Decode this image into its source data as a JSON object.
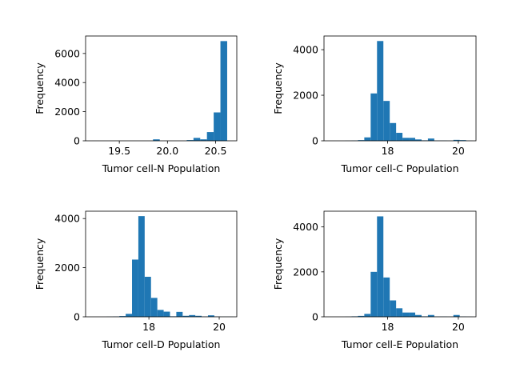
{
  "chart_data": [
    {
      "type": "bar",
      "title": "",
      "xlabel": "Tumor cell-N Population",
      "ylabel": "Frequency",
      "color": "#1f77b4",
      "xlim": [
        19.15,
        20.72
      ],
      "ylim": [
        0,
        7200
      ],
      "xticks": [
        19.5,
        20.0,
        20.5
      ],
      "xtick_labels": [
        "19.5",
        "20.0",
        "20.5"
      ],
      "yticks": [
        0,
        2000,
        4000,
        6000
      ],
      "ytick_labels": [
        "0",
        "2000",
        "4000",
        "6000"
      ],
      "bins": [
        {
          "x0": 19.22,
          "x1": 19.29,
          "value": 2
        },
        {
          "x0": 19.29,
          "x1": 19.36,
          "value": 0
        },
        {
          "x0": 19.36,
          "x1": 19.43,
          "value": 0
        },
        {
          "x0": 19.43,
          "x1": 19.5,
          "value": 0
        },
        {
          "x0": 19.5,
          "x1": 19.57,
          "value": 0
        },
        {
          "x0": 19.57,
          "x1": 19.64,
          "value": 0
        },
        {
          "x0": 19.64,
          "x1": 19.71,
          "value": 0
        },
        {
          "x0": 19.71,
          "x1": 19.78,
          "value": 0
        },
        {
          "x0": 19.78,
          "x1": 19.85,
          "value": 0
        },
        {
          "x0": 19.85,
          "x1": 19.92,
          "value": 100
        },
        {
          "x0": 19.92,
          "x1": 19.99,
          "value": 0
        },
        {
          "x0": 19.99,
          "x1": 20.06,
          "value": 0
        },
        {
          "x0": 20.06,
          "x1": 20.13,
          "value": 0
        },
        {
          "x0": 20.13,
          "x1": 20.2,
          "value": 0
        },
        {
          "x0": 20.2,
          "x1": 20.27,
          "value": 50
        },
        {
          "x0": 20.27,
          "x1": 20.34,
          "value": 200
        },
        {
          "x0": 20.34,
          "x1": 20.41,
          "value": 100
        },
        {
          "x0": 20.41,
          "x1": 20.48,
          "value": 600
        },
        {
          "x0": 20.48,
          "x1": 20.55,
          "value": 1950
        },
        {
          "x0": 20.55,
          "x1": 20.62,
          "value": 6850
        }
      ]
    },
    {
      "type": "bar",
      "title": "",
      "xlabel": "Tumor cell-C Population",
      "ylabel": "Frequency",
      "color": "#1f77b4",
      "xlim": [
        16.2,
        20.5
      ],
      "ylim": [
        0,
        4600
      ],
      "xticks": [
        18,
        20
      ],
      "xtick_labels": [
        "18",
        "20"
      ],
      "yticks": [
        0,
        2000,
        4000
      ],
      "ytick_labels": [
        "0",
        "2000",
        "4000"
      ],
      "bins": [
        {
          "x0": 16.8,
          "x1": 16.98,
          "value": 5
        },
        {
          "x0": 16.98,
          "x1": 17.16,
          "value": 10
        },
        {
          "x0": 17.16,
          "x1": 17.34,
          "value": 30
        },
        {
          "x0": 17.34,
          "x1": 17.52,
          "value": 150
        },
        {
          "x0": 17.52,
          "x1": 17.7,
          "value": 2080
        },
        {
          "x0": 17.7,
          "x1": 17.88,
          "value": 4380
        },
        {
          "x0": 17.88,
          "x1": 18.06,
          "value": 1750
        },
        {
          "x0": 18.06,
          "x1": 18.24,
          "value": 780
        },
        {
          "x0": 18.24,
          "x1": 18.42,
          "value": 350
        },
        {
          "x0": 18.42,
          "x1": 18.6,
          "value": 130
        },
        {
          "x0": 18.6,
          "x1": 18.78,
          "value": 130
        },
        {
          "x0": 18.78,
          "x1": 18.96,
          "value": 60
        },
        {
          "x0": 18.96,
          "x1": 19.14,
          "value": 20
        },
        {
          "x0": 19.14,
          "x1": 19.32,
          "value": 100
        },
        {
          "x0": 19.32,
          "x1": 19.5,
          "value": 10
        },
        {
          "x0": 19.5,
          "x1": 19.68,
          "value": 10
        },
        {
          "x0": 19.68,
          "x1": 19.86,
          "value": 5
        },
        {
          "x0": 19.86,
          "x1": 20.04,
          "value": 40
        },
        {
          "x0": 20.04,
          "x1": 20.22,
          "value": 30
        },
        {
          "x0": 20.22,
          "x1": 20.4,
          "value": 5
        }
      ]
    },
    {
      "type": "bar",
      "title": "",
      "xlabel": "Tumor cell-D Population",
      "ylabel": "Frequency",
      "color": "#1f77b4",
      "xlim": [
        16.2,
        20.5
      ],
      "ylim": [
        0,
        4300
      ],
      "xticks": [
        18,
        20
      ],
      "xtick_labels": [
        "18",
        "20"
      ],
      "yticks": [
        0,
        2000,
        4000
      ],
      "ytick_labels": [
        "0",
        "2000",
        "4000"
      ],
      "bins": [
        {
          "x0": 16.8,
          "x1": 16.98,
          "value": 5
        },
        {
          "x0": 16.98,
          "x1": 17.16,
          "value": 10
        },
        {
          "x0": 17.16,
          "x1": 17.34,
          "value": 30
        },
        {
          "x0": 17.34,
          "x1": 17.52,
          "value": 120
        },
        {
          "x0": 17.52,
          "x1": 17.7,
          "value": 2330
        },
        {
          "x0": 17.7,
          "x1": 17.88,
          "value": 4100
        },
        {
          "x0": 17.88,
          "x1": 18.06,
          "value": 1630
        },
        {
          "x0": 18.06,
          "x1": 18.24,
          "value": 770
        },
        {
          "x0": 18.24,
          "x1": 18.42,
          "value": 280
        },
        {
          "x0": 18.42,
          "x1": 18.6,
          "value": 210
        },
        {
          "x0": 18.6,
          "x1": 18.78,
          "value": 20
        },
        {
          "x0": 18.78,
          "x1": 18.96,
          "value": 200
        },
        {
          "x0": 18.96,
          "x1": 19.14,
          "value": 40
        },
        {
          "x0": 19.14,
          "x1": 19.32,
          "value": 70
        },
        {
          "x0": 19.32,
          "x1": 19.5,
          "value": 40
        },
        {
          "x0": 19.5,
          "x1": 19.68,
          "value": 10
        },
        {
          "x0": 19.68,
          "x1": 19.86,
          "value": 60
        },
        {
          "x0": 19.86,
          "x1": 20.04,
          "value": 10
        },
        {
          "x0": 20.04,
          "x1": 20.22,
          "value": 5
        },
        {
          "x0": 20.22,
          "x1": 20.4,
          "value": 5
        }
      ]
    },
    {
      "type": "bar",
      "title": "",
      "xlabel": "Tumor cell-E Population",
      "ylabel": "Frequency",
      "color": "#1f77b4",
      "xlim": [
        16.2,
        20.5
      ],
      "ylim": [
        0,
        4700
      ],
      "xticks": [
        18,
        20
      ],
      "xtick_labels": [
        "18",
        "20"
      ],
      "yticks": [
        0,
        2000,
        4000
      ],
      "ytick_labels": [
        "0",
        "2000",
        "4000"
      ],
      "bins": [
        {
          "x0": 16.8,
          "x1": 16.98,
          "value": 5
        },
        {
          "x0": 16.98,
          "x1": 17.16,
          "value": 20
        },
        {
          "x0": 17.16,
          "x1": 17.34,
          "value": 40
        },
        {
          "x0": 17.34,
          "x1": 17.52,
          "value": 130
        },
        {
          "x0": 17.52,
          "x1": 17.7,
          "value": 2000
        },
        {
          "x0": 17.7,
          "x1": 17.88,
          "value": 4470
        },
        {
          "x0": 17.88,
          "x1": 18.06,
          "value": 1750
        },
        {
          "x0": 18.06,
          "x1": 18.24,
          "value": 730
        },
        {
          "x0": 18.24,
          "x1": 18.42,
          "value": 380
        },
        {
          "x0": 18.42,
          "x1": 18.6,
          "value": 190
        },
        {
          "x0": 18.6,
          "x1": 18.78,
          "value": 190
        },
        {
          "x0": 18.78,
          "x1": 18.96,
          "value": 80
        },
        {
          "x0": 18.96,
          "x1": 19.14,
          "value": 20
        },
        {
          "x0": 19.14,
          "x1": 19.32,
          "value": 80
        },
        {
          "x0": 19.32,
          "x1": 19.5,
          "value": 10
        },
        {
          "x0": 19.5,
          "x1": 19.68,
          "value": 10
        },
        {
          "x0": 19.68,
          "x1": 19.86,
          "value": 5
        },
        {
          "x0": 19.86,
          "x1": 20.04,
          "value": 80
        },
        {
          "x0": 20.04,
          "x1": 20.22,
          "value": 10
        },
        {
          "x0": 20.22,
          "x1": 20.4,
          "value": 5
        }
      ]
    }
  ]
}
